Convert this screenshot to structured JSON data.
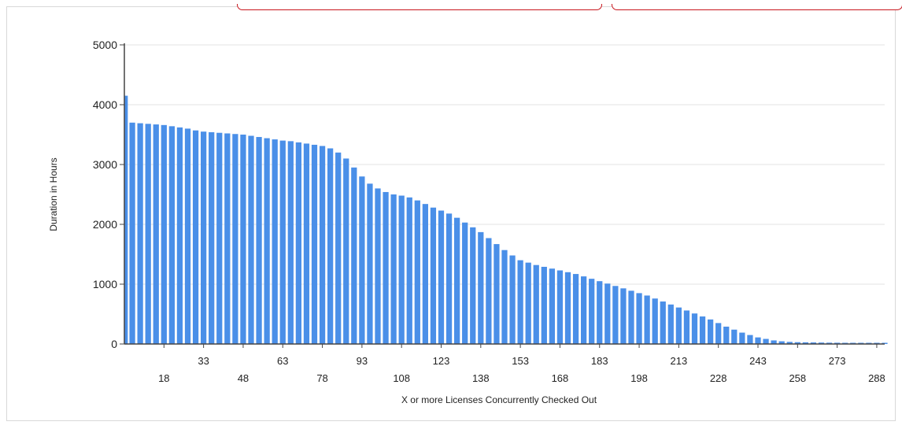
{
  "chart_data": {
    "type": "bar",
    "title": "",
    "xlabel": "X or more Licenses Concurrently Checked Out",
    "ylabel": "Duration in Hours",
    "ylim": [
      0,
      5000
    ],
    "yticks": [
      0,
      1000,
      2000,
      3000,
      4000,
      5000
    ],
    "xlim": [
      3,
      291
    ],
    "xticks_upper": [
      33,
      63,
      93,
      123,
      153,
      183,
      213,
      243,
      273
    ],
    "xticks_lower": [
      18,
      48,
      78,
      108,
      138,
      168,
      198,
      228,
      258,
      288
    ],
    "grid": "horizontal",
    "legend": "none",
    "bar_color": "#4a8fe8",
    "x": [
      3,
      6,
      9,
      12,
      15,
      18,
      21,
      24,
      27,
      30,
      33,
      36,
      39,
      42,
      45,
      48,
      51,
      54,
      57,
      60,
      63,
      66,
      69,
      72,
      75,
      78,
      81,
      84,
      87,
      90,
      93,
      96,
      99,
      102,
      105,
      108,
      111,
      114,
      117,
      120,
      123,
      126,
      129,
      132,
      135,
      138,
      141,
      144,
      147,
      150,
      153,
      156,
      159,
      162,
      165,
      168,
      171,
      174,
      177,
      180,
      183,
      186,
      189,
      192,
      195,
      198,
      201,
      204,
      207,
      210,
      213,
      216,
      219,
      222,
      225,
      228,
      231,
      234,
      237,
      240,
      243,
      246,
      249,
      252,
      255,
      258,
      261,
      264,
      267,
      270,
      273,
      276,
      279,
      282,
      285,
      288,
      291
    ],
    "values": [
      4150,
      3700,
      3690,
      3680,
      3670,
      3660,
      3640,
      3620,
      3600,
      3570,
      3550,
      3540,
      3530,
      3520,
      3510,
      3500,
      3480,
      3460,
      3440,
      3420,
      3400,
      3390,
      3370,
      3350,
      3330,
      3310,
      3270,
      3200,
      3100,
      2950,
      2800,
      2680,
      2600,
      2540,
      2500,
      2480,
      2450,
      2400,
      2340,
      2280,
      2230,
      2180,
      2110,
      2030,
      1950,
      1870,
      1770,
      1670,
      1570,
      1480,
      1400,
      1360,
      1320,
      1290,
      1260,
      1230,
      1200,
      1170,
      1130,
      1090,
      1050,
      1010,
      970,
      930,
      890,
      850,
      810,
      760,
      710,
      660,
      610,
      560,
      510,
      460,
      410,
      350,
      290,
      240,
      190,
      150,
      110,
      85,
      60,
      45,
      35,
      30,
      28,
      26,
      24,
      22,
      21,
      20,
      20,
      20,
      20,
      20,
      20
    ]
  }
}
